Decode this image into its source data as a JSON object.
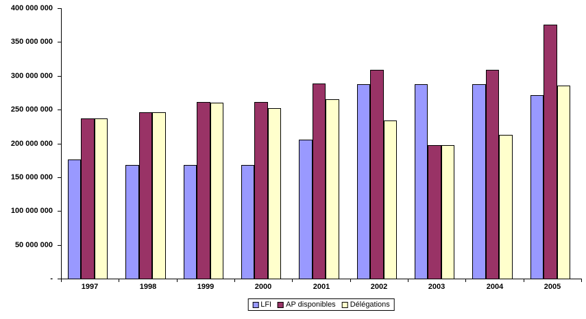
{
  "chart_data": {
    "type": "bar",
    "title": "",
    "xlabel": "",
    "ylabel": "",
    "categories": [
      "1997",
      "1998",
      "1999",
      "2000",
      "2001",
      "2002",
      "2003",
      "2004",
      "2005"
    ],
    "series": [
      {
        "name": "LFI",
        "color": "#9999FF",
        "values": [
          176000000,
          168000000,
          168000000,
          168000000,
          206000000,
          288000000,
          288000000,
          288000000,
          271000000
        ]
      },
      {
        "name": "AP disponibles",
        "color": "#993366",
        "values": [
          237000000,
          246000000,
          261000000,
          261000000,
          289000000,
          309000000,
          198000000,
          309000000,
          376000000
        ]
      },
      {
        "name": "Délégations",
        "color": "#FFFFCC",
        "values": [
          237000000,
          246000000,
          260000000,
          252000000,
          265000000,
          234000000,
          198000000,
          213000000,
          286000000
        ]
      }
    ],
    "ylim": [
      0,
      400000000
    ],
    "ytick_step": 50000000,
    "ytick_labels": [
      "-",
      "50 000 000",
      "100 000 000",
      "150 000 000",
      "200 000 000",
      "250 000 000",
      "300 000 000",
      "350 000 000",
      "400 000 000"
    ],
    "grid": false,
    "plot_background": "#FFFFFF",
    "axis_color": "#000000",
    "bar_border_color": "#000000",
    "legend_position": "bottom-center"
  }
}
